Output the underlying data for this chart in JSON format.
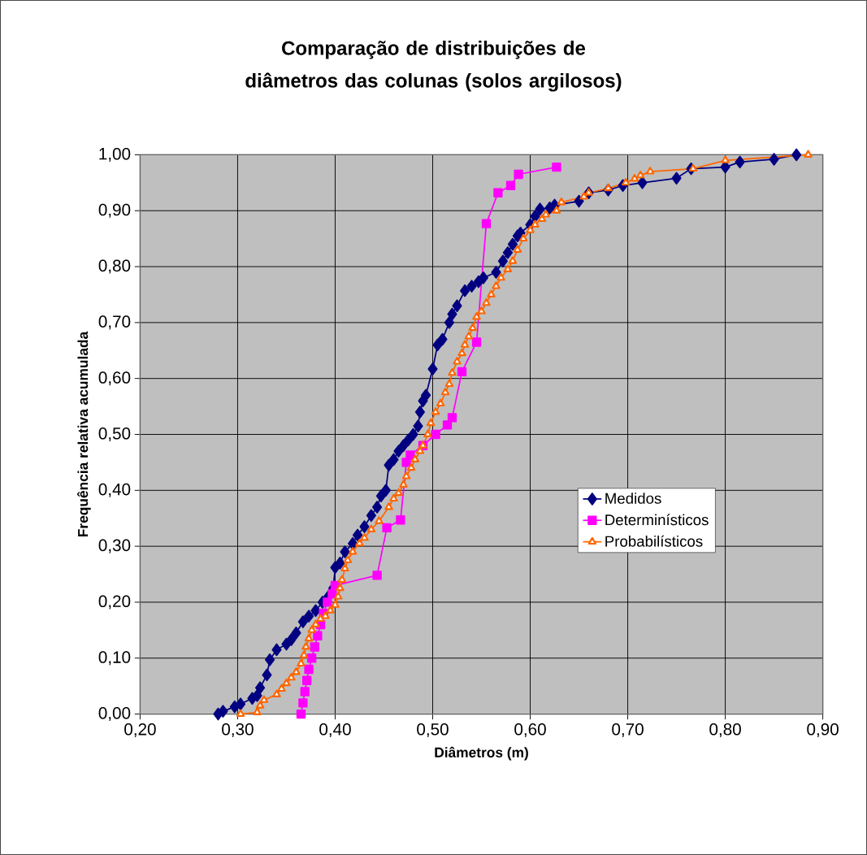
{
  "chart_data": {
    "type": "line",
    "title": "Comparação de distribuições de diâmetros das colunas (solos argilosos)",
    "xlabel": "Diâmetros (m)",
    "ylabel": "Frequência relativa acumulada",
    "xlim": [
      0.2,
      0.9
    ],
    "ylim": [
      0,
      1
    ],
    "xticks": [
      {
        "value": 0.2,
        "label": "0,20"
      },
      {
        "value": 0.3,
        "label": "0,30"
      },
      {
        "value": 0.4,
        "label": "0,40"
      },
      {
        "value": 0.5,
        "label": "0,50"
      },
      {
        "value": 0.6,
        "label": "0,60"
      },
      {
        "value": 0.7,
        "label": "0,70"
      },
      {
        "value": 0.8,
        "label": "0,80"
      },
      {
        "value": 0.9,
        "label": "0,90"
      }
    ],
    "yticks": [
      {
        "value": 0,
        "label": "0,00"
      },
      {
        "value": 0.1,
        "label": "0,10"
      },
      {
        "value": 0.2,
        "label": "0,20"
      },
      {
        "value": 0.3,
        "label": "0,30"
      },
      {
        "value": 0.4,
        "label": "0,40"
      },
      {
        "value": 0.5,
        "label": "0,50"
      },
      {
        "value": 0.6,
        "label": "0,60"
      },
      {
        "value": 0.7,
        "label": "0,70"
      },
      {
        "value": 0.8,
        "label": "0,80"
      },
      {
        "value": 0.9,
        "label": "0,90"
      },
      {
        "value": 1,
        "label": "1,00"
      }
    ],
    "grid": true,
    "legend": "right",
    "line_style": "solid",
    "series": [
      {
        "name": "Medidos",
        "color": "#000080",
        "marker": "diamond",
        "x": [
          0.28,
          0.285,
          0.297,
          0.303,
          0.315,
          0.32,
          0.323,
          0.33,
          0.333,
          0.34,
          0.35,
          0.355,
          0.36,
          0.367,
          0.373,
          0.38,
          0.387,
          0.393,
          0.398,
          0.4,
          0.405,
          0.41,
          0.418,
          0.423,
          0.43,
          0.437,
          0.443,
          0.447,
          0.452,
          0.455,
          0.46,
          0.465,
          0.47,
          0.475,
          0.48,
          0.485,
          0.487,
          0.49,
          0.493,
          0.5,
          0.505,
          0.51,
          0.517,
          0.52,
          0.525,
          0.533,
          0.54,
          0.547,
          0.552,
          0.565,
          0.572,
          0.577,
          0.582,
          0.587,
          0.59,
          0.6,
          0.605,
          0.61,
          0.62,
          0.625,
          0.65,
          0.66,
          0.68,
          0.695,
          0.715,
          0.75,
          0.765,
          0.8,
          0.815,
          0.85,
          0.873
        ],
        "values": [
          0.0,
          0.005,
          0.013,
          0.018,
          0.028,
          0.033,
          0.047,
          0.07,
          0.097,
          0.115,
          0.125,
          0.133,
          0.145,
          0.165,
          0.175,
          0.185,
          0.2,
          0.21,
          0.225,
          0.262,
          0.27,
          0.29,
          0.305,
          0.32,
          0.335,
          0.355,
          0.37,
          0.39,
          0.4,
          0.445,
          0.455,
          0.47,
          0.48,
          0.49,
          0.5,
          0.515,
          0.54,
          0.56,
          0.57,
          0.617,
          0.66,
          0.67,
          0.7,
          0.715,
          0.73,
          0.757,
          0.765,
          0.773,
          0.78,
          0.79,
          0.81,
          0.825,
          0.84,
          0.855,
          0.86,
          0.875,
          0.89,
          0.903,
          0.905,
          0.91,
          0.917,
          0.932,
          0.937,
          0.945,
          0.95,
          0.958,
          0.975,
          0.978,
          0.987,
          0.992,
          1.0
        ]
      },
      {
        "name": "Determinísticos",
        "color": "#ff00ff",
        "marker": "square",
        "x": [
          0.365,
          0.367,
          0.369,
          0.371,
          0.373,
          0.376,
          0.379,
          0.382,
          0.385,
          0.388,
          0.392,
          0.397,
          0.4,
          0.443,
          0.453,
          0.467,
          0.473,
          0.477,
          0.49,
          0.503,
          0.515,
          0.52,
          0.53,
          0.545,
          0.555,
          0.567,
          0.58,
          0.588,
          0.627
        ],
        "values": [
          0.0,
          0.02,
          0.04,
          0.06,
          0.08,
          0.1,
          0.12,
          0.14,
          0.16,
          0.18,
          0.2,
          0.215,
          0.23,
          0.248,
          0.333,
          0.347,
          0.45,
          0.463,
          0.48,
          0.5,
          0.517,
          0.53,
          0.612,
          0.665,
          0.877,
          0.932,
          0.945,
          0.965,
          0.978
        ]
      },
      {
        "name": "Probabilísticos",
        "color": "#ff6600",
        "marker": "triangle",
        "x": [
          0.303,
          0.32,
          0.323,
          0.327,
          0.34,
          0.345,
          0.35,
          0.355,
          0.36,
          0.365,
          0.368,
          0.37,
          0.373,
          0.376,
          0.38,
          0.385,
          0.39,
          0.395,
          0.4,
          0.403,
          0.405,
          0.407,
          0.41,
          0.413,
          0.418,
          0.425,
          0.43,
          0.437,
          0.445,
          0.455,
          0.46,
          0.465,
          0.47,
          0.473,
          0.478,
          0.482,
          0.487,
          0.49,
          0.495,
          0.498,
          0.503,
          0.508,
          0.513,
          0.517,
          0.52,
          0.525,
          0.53,
          0.533,
          0.537,
          0.541,
          0.545,
          0.55,
          0.555,
          0.56,
          0.565,
          0.57,
          0.577,
          0.582,
          0.587,
          0.593,
          0.6,
          0.605,
          0.612,
          0.616,
          0.627,
          0.632,
          0.655,
          0.66,
          0.68,
          0.698,
          0.707,
          0.713,
          0.723,
          0.767,
          0.8,
          0.885
        ],
        "values": [
          0.0,
          0.003,
          0.015,
          0.025,
          0.035,
          0.045,
          0.055,
          0.065,
          0.075,
          0.09,
          0.105,
          0.12,
          0.135,
          0.15,
          0.16,
          0.17,
          0.175,
          0.185,
          0.195,
          0.21,
          0.225,
          0.24,
          0.26,
          0.275,
          0.29,
          0.305,
          0.315,
          0.33,
          0.345,
          0.37,
          0.385,
          0.395,
          0.41,
          0.425,
          0.44,
          0.455,
          0.47,
          0.48,
          0.5,
          0.52,
          0.54,
          0.555,
          0.575,
          0.59,
          0.61,
          0.63,
          0.645,
          0.66,
          0.675,
          0.69,
          0.71,
          0.72,
          0.735,
          0.75,
          0.765,
          0.78,
          0.795,
          0.81,
          0.83,
          0.85,
          0.865,
          0.875,
          0.885,
          0.893,
          0.9,
          0.915,
          0.925,
          0.932,
          0.94,
          0.95,
          0.957,
          0.963,
          0.97,
          0.975,
          0.99,
          1.0
        ]
      }
    ]
  }
}
